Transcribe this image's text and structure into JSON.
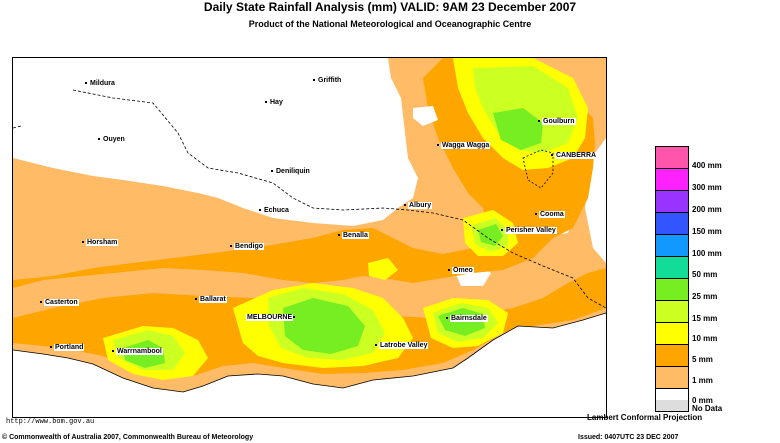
{
  "header": {
    "title": "Daily State Rainfall Analysis (mm)  VALID: 9AM 23 December 2007",
    "subtitle": "Product of the National Meteorological and Oceanographic Centre"
  },
  "map": {
    "places": [
      {
        "id": "mildura",
        "label": "Mildura"
      },
      {
        "id": "griffith",
        "label": "Griffith"
      },
      {
        "id": "hay",
        "label": "Hay"
      },
      {
        "id": "ouyen",
        "label": "Ouyen"
      },
      {
        "id": "wagga",
        "label": "Wagga Wagga"
      },
      {
        "id": "goulburn",
        "label": "Goulburn"
      },
      {
        "id": "canberra",
        "label": "CANBERRA"
      },
      {
        "id": "deniliquin",
        "label": "Deniliquin"
      },
      {
        "id": "echuca",
        "label": "Echuca"
      },
      {
        "id": "albury",
        "label": "Albury"
      },
      {
        "id": "cooma",
        "label": "Cooma"
      },
      {
        "id": "horsham",
        "label": "Horsham"
      },
      {
        "id": "bendigo",
        "label": "Bendigo"
      },
      {
        "id": "benalla",
        "label": "Benalla"
      },
      {
        "id": "perisher",
        "label": "Perisher Valley"
      },
      {
        "id": "omeo",
        "label": "Omeo"
      },
      {
        "id": "casterton",
        "label": "Casterton"
      },
      {
        "id": "ballarat",
        "label": "Ballarat"
      },
      {
        "id": "melbourne",
        "label": "MELBOURNE"
      },
      {
        "id": "bairnsdale",
        "label": "Bairnsdale"
      },
      {
        "id": "portland",
        "label": "Portland"
      },
      {
        "id": "warrnambool",
        "label": "Warrnambool"
      },
      {
        "id": "latrobe",
        "label": "Latrobe Valley"
      }
    ],
    "projection": "Lambert Conformal Projection",
    "url": "http://www.bom.gov.au"
  },
  "legend": {
    "items": [
      {
        "label": "400 mm",
        "color": "#ff55aa"
      },
      {
        "label": "300 mm",
        "color": "#ff22ff"
      },
      {
        "label": "200 mm",
        "color": "#9933ff"
      },
      {
        "label": "150 mm",
        "color": "#3355ff"
      },
      {
        "label": "100 mm",
        "color": "#1199ff"
      },
      {
        "label": "50 mm",
        "color": "#11dd99"
      },
      {
        "label": "25 mm",
        "color": "#77ee22"
      },
      {
        "label": "15 mm",
        "color": "#ccff22"
      },
      {
        "label": "10 mm",
        "color": "#ffff00"
      },
      {
        "label": "5 mm",
        "color": "#ffa500"
      },
      {
        "label": "1 mm",
        "color": "#ffbb66"
      },
      {
        "label": "0 mm",
        "color": "#ffffff"
      }
    ],
    "no_data_label": "No Data",
    "no_data_color": "#dddddd"
  },
  "footer": {
    "copyright": "© Commonwealth of Australia 2007, Commonwealth Bureau of Meteorology",
    "issued": "Issued: 0407UTC 23 DEC 2007"
  }
}
